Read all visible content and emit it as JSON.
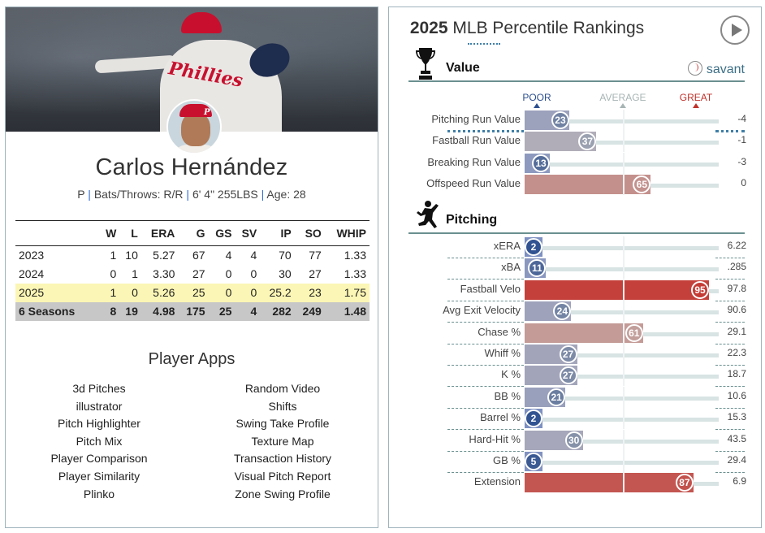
{
  "player": {
    "name": "Carlos Hernández",
    "bio_pos": "P",
    "bio_bats": "Bats/Throws: R/R",
    "bio_size": "6' 4\" 255LBS",
    "bio_age": "Age: 28",
    "jersey_text": "Phillies",
    "cap_logo": "P"
  },
  "stats": {
    "headers": [
      "",
      "W",
      "L",
      "ERA",
      "G",
      "GS",
      "SV",
      "IP",
      "SO",
      "WHIP"
    ],
    "rows": [
      [
        "2023",
        "1",
        "10",
        "5.27",
        "67",
        "4",
        "4",
        "70",
        "77",
        "1.33"
      ],
      [
        "2024",
        "0",
        "1",
        "3.30",
        "27",
        "0",
        "0",
        "30",
        "27",
        "1.33"
      ],
      [
        "2025",
        "1",
        "0",
        "5.26",
        "25",
        "0",
        "0",
        "25.2",
        "23",
        "1.75"
      ],
      [
        "6 Seasons",
        "8",
        "19",
        "4.98",
        "175",
        "25",
        "4",
        "282",
        "249",
        "1.48"
      ]
    ]
  },
  "apps": {
    "title": "Player Apps",
    "left": [
      "3d Pitches",
      "illustrator",
      "Pitch Highlighter",
      "Pitch Mix",
      "Player Comparison",
      "Player Similarity",
      "Plinko"
    ],
    "right": [
      "Random Video",
      "Shifts",
      "Swing Take Profile",
      "Texture Map",
      "Transaction History",
      "Visual Pitch Report",
      "Zone Swing Profile"
    ]
  },
  "rankings": {
    "title_year": "2025",
    "title_rest": "MLB Percentile Rankings",
    "savant_label": "savant",
    "scale": {
      "poor": "POOR",
      "average": "AVERAGE",
      "great": "GREAT",
      "poor_color": "#2c4f8f",
      "average_color": "#a8b4b4",
      "great_color": "#c0322b"
    },
    "sections": [
      {
        "label": "Value",
        "icon": "trophy-icon",
        "metrics": [
          {
            "name": "Pitching Run Value",
            "pct": 23,
            "value": "-4"
          },
          {
            "name": "Fastball Run Value",
            "pct": 37,
            "value": "-1"
          },
          {
            "name": "Breaking Run Value",
            "pct": 13,
            "value": "-3"
          },
          {
            "name": "Offspeed Run Value",
            "pct": 65,
            "value": "0"
          }
        ]
      },
      {
        "label": "Pitching",
        "icon": "pitcher-icon",
        "metrics": [
          {
            "name": "xERA",
            "pct": 2,
            "value": "6.22"
          },
          {
            "name": "xBA",
            "pct": 11,
            "value": ".285"
          },
          {
            "name": "Fastball Velo",
            "pct": 95,
            "value": "97.8"
          },
          {
            "name": "Avg Exit Velocity",
            "pct": 24,
            "value": "90.6"
          },
          {
            "name": "Chase %",
            "pct": 61,
            "value": "29.1"
          },
          {
            "name": "Whiff %",
            "pct": 27,
            "value": "22.3"
          },
          {
            "name": "K %",
            "pct": 27,
            "value": "18.7"
          },
          {
            "name": "BB %",
            "pct": 21,
            "value": "10.6"
          },
          {
            "name": "Barrel %",
            "pct": 2,
            "value": "15.3"
          },
          {
            "name": "Hard-Hit %",
            "pct": 30,
            "value": "43.5"
          },
          {
            "name": "GB %",
            "pct": 5,
            "value": "29.4"
          },
          {
            "name": "Extension",
            "pct": 87,
            "value": "6.9"
          }
        ]
      }
    ]
  }
}
